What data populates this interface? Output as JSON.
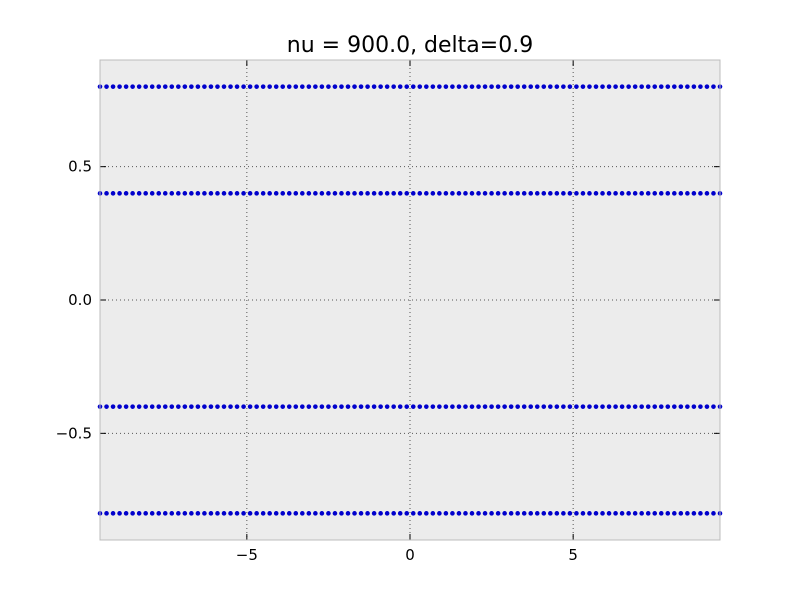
{
  "chart_data": {
    "type": "scatter",
    "title": "nu = 900.0, delta=0.9",
    "xlabel": "",
    "ylabel": "",
    "xlim": [
      -9.5,
      9.5
    ],
    "ylim": [
      -0.9,
      0.9
    ],
    "grid": true,
    "background_color": "#ececec",
    "marker_color": "#0000cc",
    "xticks": [
      -5,
      0,
      5
    ],
    "xtick_labels": [
      "−5",
      "0",
      "5"
    ],
    "yticks": [
      -0.5,
      0.0,
      0.5
    ],
    "ytick_labels": [
      "−0.5",
      "0.0",
      "0.5"
    ],
    "series": [
      {
        "x_range": [
          -9.5,
          9.5
        ],
        "x_step": 0.2,
        "y": 0.8
      },
      {
        "x_range": [
          -9.5,
          9.5
        ],
        "x_step": 0.2,
        "y": 0.4
      },
      {
        "x_range": [
          -9.5,
          9.5
        ],
        "x_step": 0.2,
        "y": -0.4
      },
      {
        "x_range": [
          -9.5,
          9.5
        ],
        "x_step": 0.2,
        "y": -0.8
      }
    ]
  }
}
